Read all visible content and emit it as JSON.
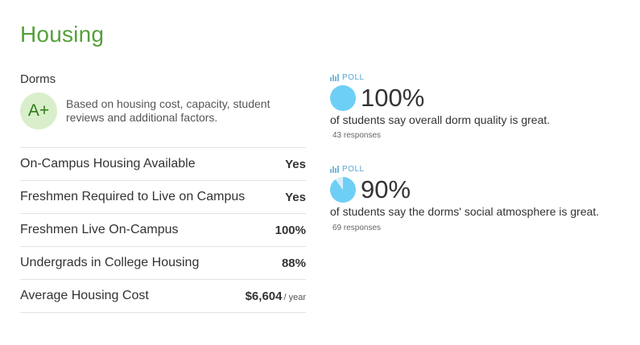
{
  "section": {
    "title": "Housing"
  },
  "dorms": {
    "label": "Dorms",
    "grade": "A+",
    "description": "Based on housing cost, capacity, student reviews and additional factors."
  },
  "facts": [
    {
      "label": "On-Campus Housing Available",
      "value": "Yes",
      "unit": ""
    },
    {
      "label": "Freshmen Required to Live on Campus",
      "value": "Yes",
      "unit": ""
    },
    {
      "label": "Freshmen Live On-Campus",
      "value": "100%",
      "unit": ""
    },
    {
      "label": "Undergrads in College Housing",
      "value": "88%",
      "unit": ""
    },
    {
      "label": "Average Housing Cost",
      "value": "$6,604",
      "unit": "/ year"
    }
  ],
  "polls": [
    {
      "tag": "POLL",
      "percent": "100%",
      "fraction": 1.0,
      "text": "of students say overall dorm quality is great.",
      "responses": "43 responses"
    },
    {
      "tag": "POLL",
      "percent": "90%",
      "fraction": 0.9,
      "text": "of students say the dorms' social atmosphere is great.",
      "responses": "69 responses"
    }
  ],
  "colors": {
    "title_green": "#55a03c",
    "grade_bg": "#d9efcb",
    "pie_fill": "#6ecff6",
    "pie_empty": "#d8eef9",
    "poll_blue": "#5aa6d6"
  },
  "icons": {
    "poll": "bar-chart-icon"
  }
}
